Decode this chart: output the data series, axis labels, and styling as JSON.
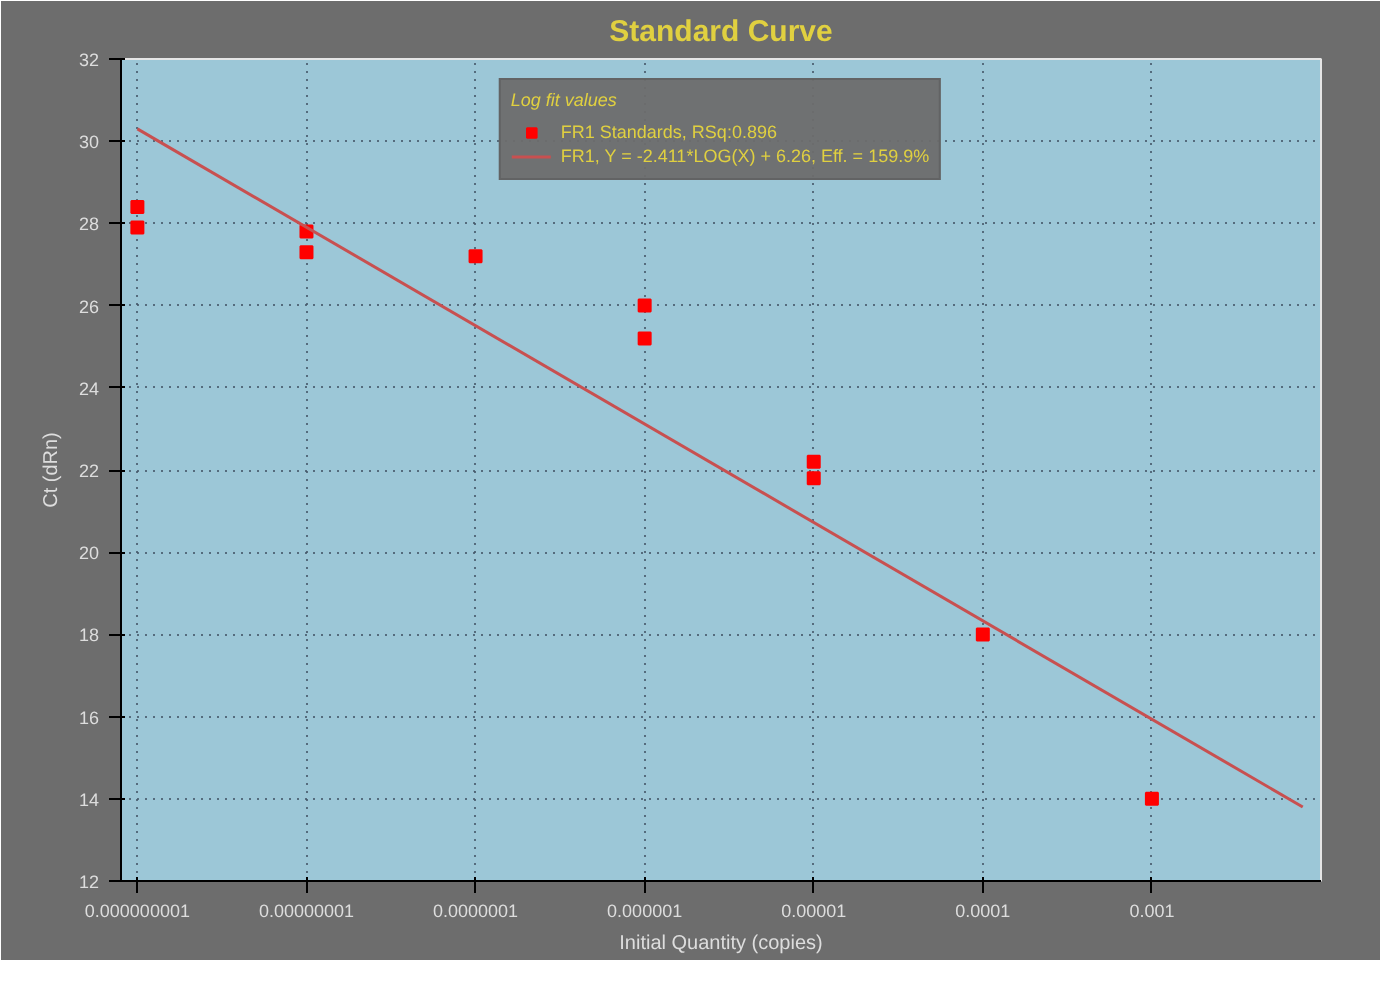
{
  "chart_data": {
    "type": "scatter",
    "title": "Standard Curve",
    "legend_title": "Log fit values",
    "xlabel": "Initial Quantity (copies)",
    "ylabel": "Ct (dRn)",
    "log": "x",
    "xlim": [
      8e-10,
      0.01
    ],
    "ylim": [
      12,
      32
    ],
    "xticks": [
      {
        "value": 1e-09,
        "label": "0.000000001"
      },
      {
        "value": 1e-08,
        "label": "0.00000001"
      },
      {
        "value": 1e-07,
        "label": "0.0000001"
      },
      {
        "value": 1e-06,
        "label": "0.000001"
      },
      {
        "value": 1e-05,
        "label": "0.00001"
      },
      {
        "value": 0.0001,
        "label": "0.0001"
      },
      {
        "value": 0.001,
        "label": "0.001"
      }
    ],
    "yticks": [
      12,
      14,
      16,
      18,
      20,
      22,
      24,
      26,
      28,
      30,
      32
    ],
    "grid": true,
    "legend": "top",
    "marker": "square",
    "series": [
      {
        "name": "FR1 Standards, RSq:0.896",
        "color": "#ff0000",
        "x": [
          1e-09,
          1e-09,
          1e-08,
          1e-08,
          1e-07,
          1e-06,
          1e-06,
          1e-05,
          1e-05,
          0.0001,
          0.001
        ],
        "values": [
          28.4,
          27.9,
          27.8,
          27.3,
          27.2,
          26.0,
          25.2,
          22.2,
          21.8,
          18.0,
          14.0
        ]
      },
      {
        "name": "FR1, Y = -2.411*LOG(X) + 6.26, Eff. = 159.9%",
        "color": "#c85050",
        "type": "line",
        "marker": "none",
        "x": [
          1e-09,
          0.0078
        ],
        "values": [
          30.3,
          13.8
        ]
      }
    ]
  }
}
